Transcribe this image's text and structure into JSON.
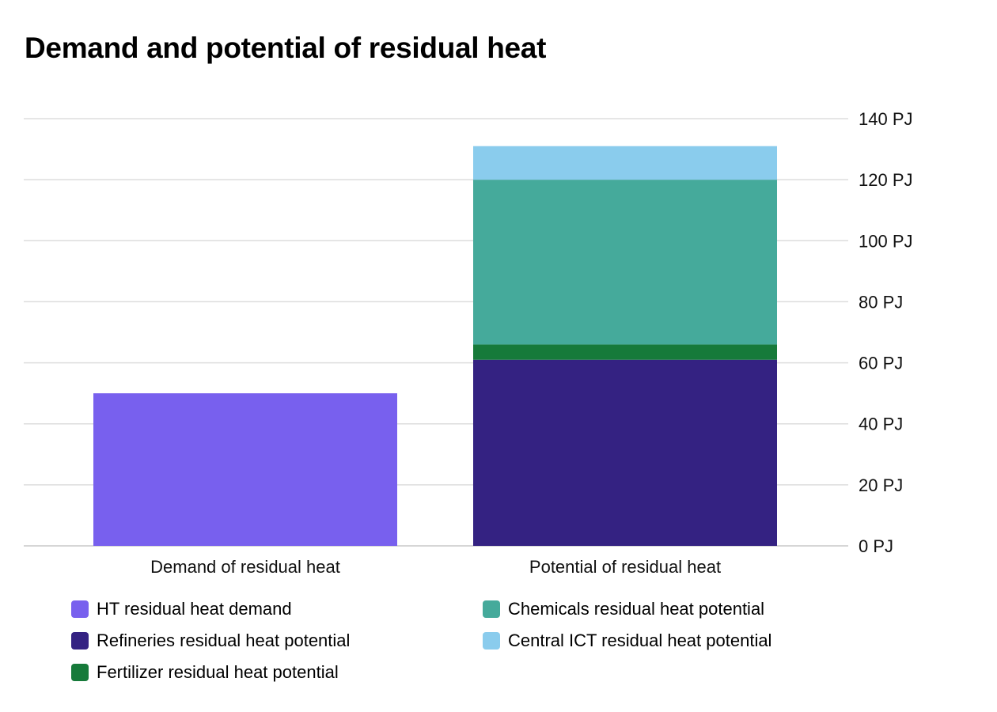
{
  "chart_data": {
    "type": "bar",
    "stacked": true,
    "title": "Demand and potential of residual heat",
    "categories": [
      "Demand of residual heat",
      "Potential of residual heat"
    ],
    "unit": "PJ",
    "ylim": [
      0,
      140
    ],
    "yticks": [
      0,
      20,
      40,
      60,
      80,
      100,
      120,
      140
    ],
    "ytick_labels": [
      "0 PJ",
      "20 PJ",
      "40 PJ",
      "60 PJ",
      "80 PJ",
      "100 PJ",
      "120 PJ",
      "140 PJ"
    ],
    "y_axis_side": "right",
    "grid": true,
    "legend_position": "bottom",
    "series": [
      {
        "name": "HT residual heat demand",
        "color": "#7860ee",
        "values": [
          50,
          0
        ]
      },
      {
        "name": "Refineries residual heat potential",
        "color": "#342282",
        "values": [
          0,
          61
        ]
      },
      {
        "name": "Fertilizer residual heat potential",
        "color": "#167a3a",
        "values": [
          0,
          5
        ]
      },
      {
        "name": "Chemicals residual heat potential",
        "color": "#45aa9b",
        "values": [
          0,
          54
        ]
      },
      {
        "name": "Central ICT residual heat potential",
        "color": "#8acced",
        "values": [
          0,
          11
        ]
      }
    ]
  }
}
